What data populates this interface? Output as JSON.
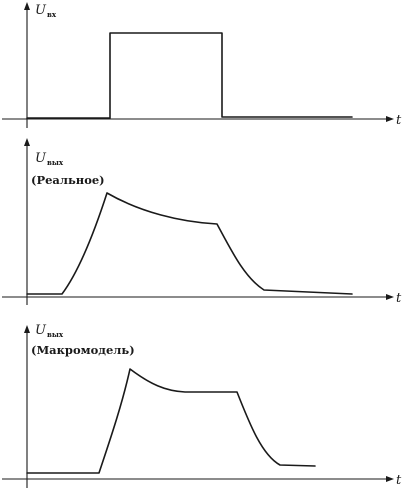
{
  "panels": [
    {
      "id": "input",
      "y_label": "U",
      "y_label_sub": "вх",
      "caption": "",
      "x_label": "t",
      "curve": "pulse"
    },
    {
      "id": "real",
      "y_label": "U",
      "y_label_sub": "вых",
      "caption": "(Реальное)",
      "x_label": "t",
      "curve": "real-response"
    },
    {
      "id": "macro",
      "y_label": "U",
      "y_label_sub": "вых",
      "caption": "(Макромодель)",
      "x_label": "t",
      "curve": "macromodel-response"
    }
  ]
}
